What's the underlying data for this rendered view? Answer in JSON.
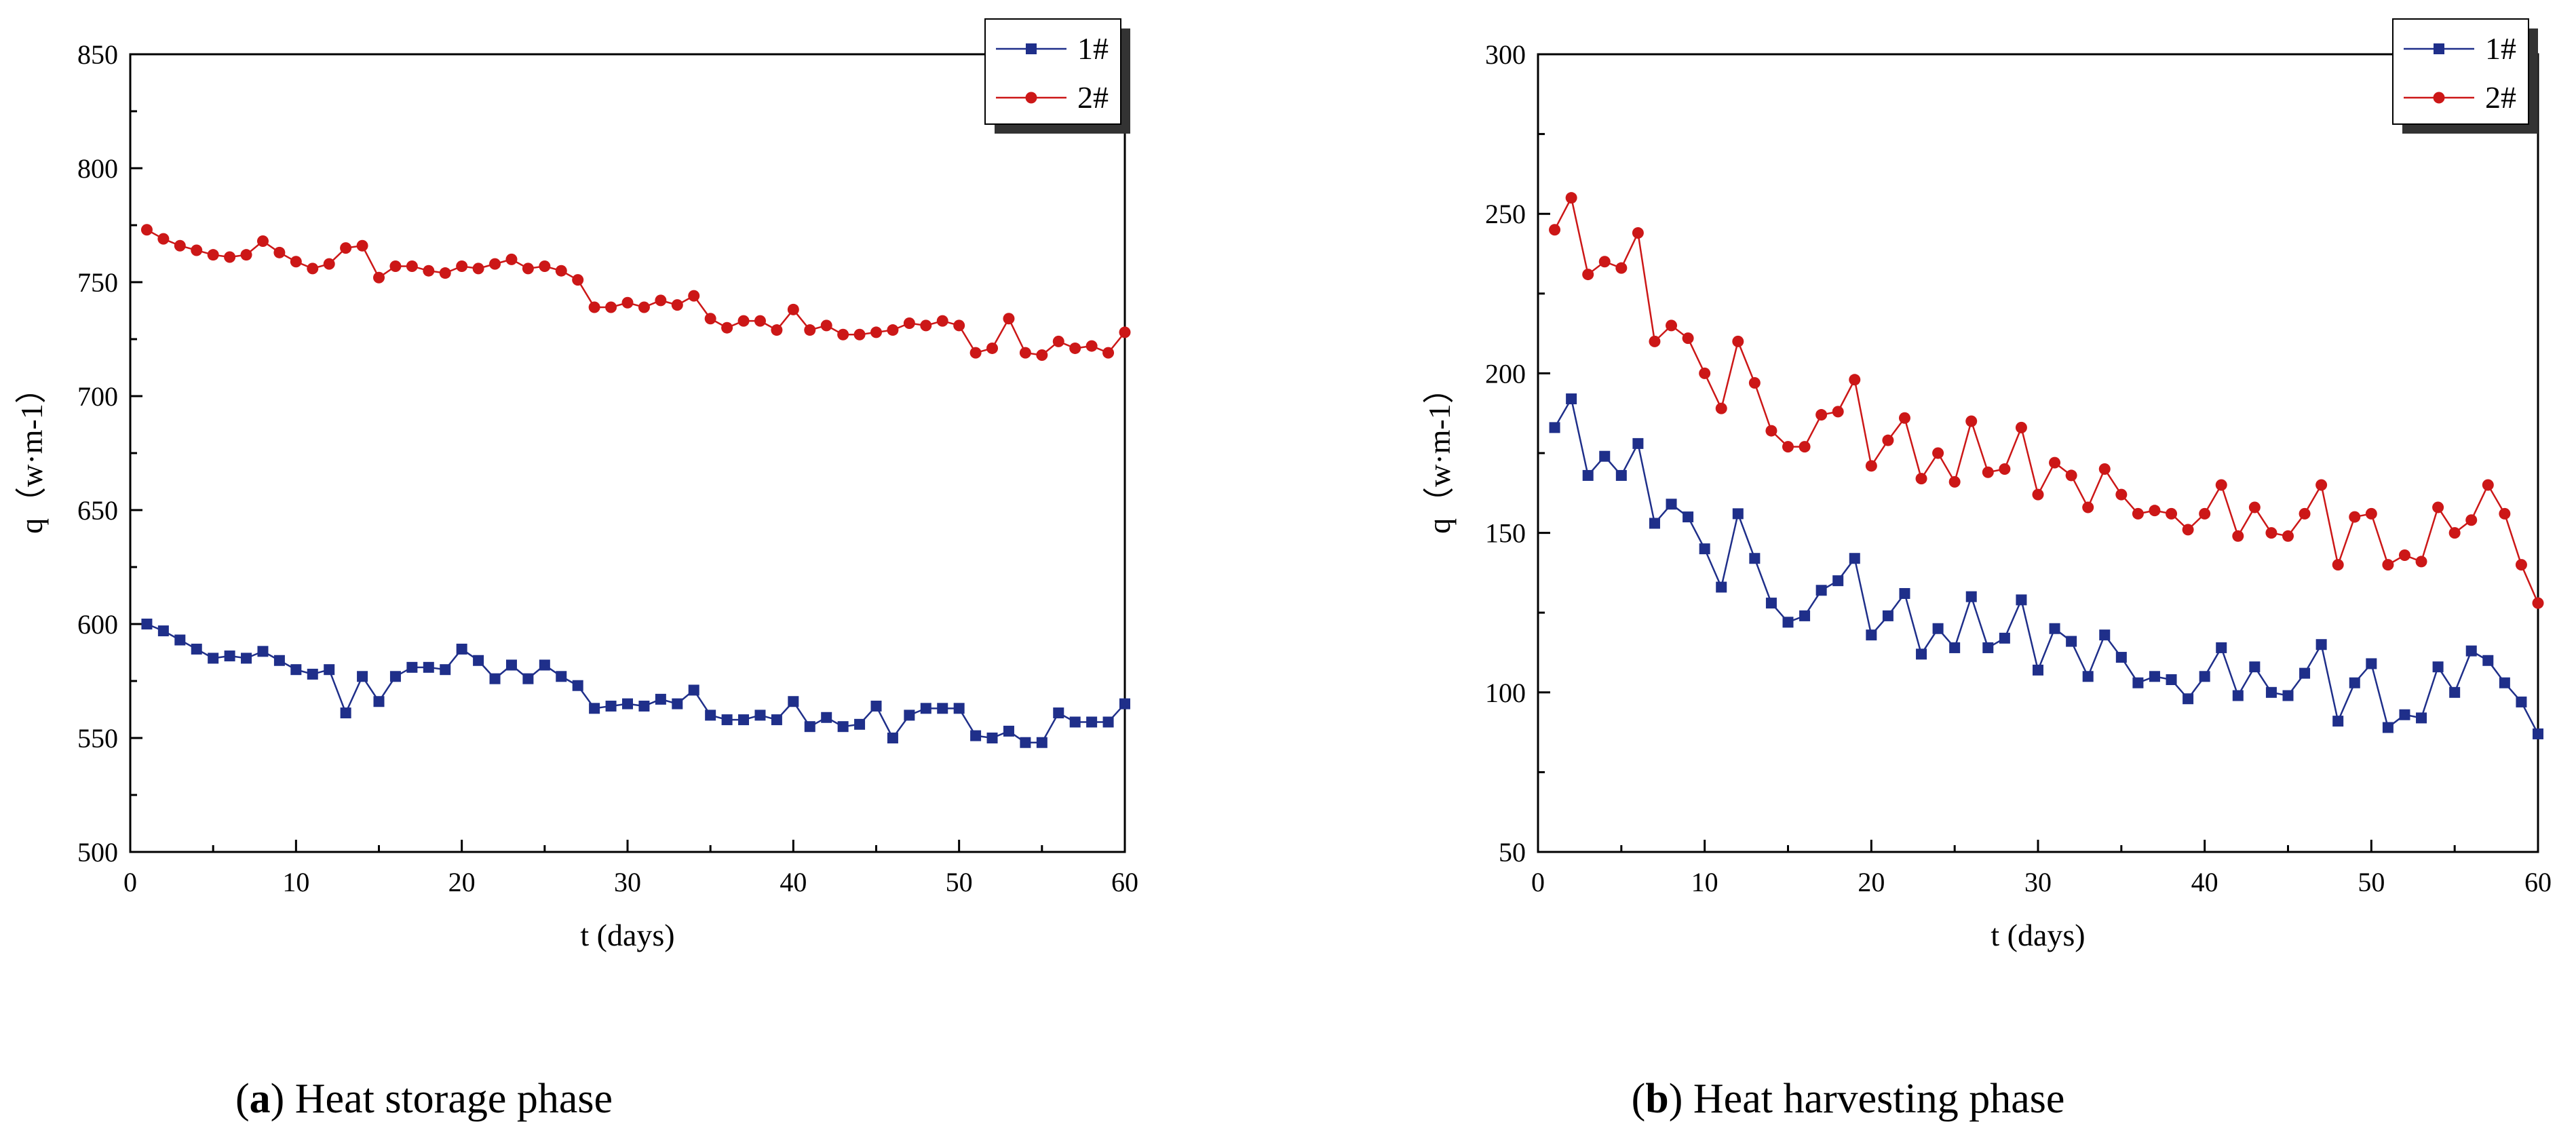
{
  "captions": [
    {
      "letter": "a",
      "text": "Heat storage phase"
    },
    {
      "letter": "b",
      "text": "Heat harvesting phase"
    }
  ],
  "colors": {
    "series_1": "#1f2f8a",
    "series_2": "#cc1717",
    "axis": "#000000",
    "legend_shadow": "#333333"
  },
  "chart_data": [
    {
      "type": "line",
      "xlabel": "t (days)",
      "ylabel": "q（w·m-1）",
      "xlim": [
        0,
        60
      ],
      "ylim": [
        500,
        850
      ],
      "xticks": [
        0,
        10,
        20,
        30,
        40,
        50,
        60
      ],
      "yticks": [
        500,
        550,
        600,
        650,
        700,
        750,
        800,
        850
      ],
      "grid": false,
      "legend_position": "top-right",
      "x": [
        1,
        2,
        3,
        4,
        5,
        6,
        7,
        8,
        9,
        10,
        11,
        12,
        13,
        14,
        15,
        16,
        17,
        18,
        19,
        20,
        21,
        22,
        23,
        24,
        25,
        26,
        27,
        28,
        29,
        30,
        31,
        32,
        33,
        34,
        35,
        36,
        37,
        38,
        39,
        40,
        41,
        42,
        43,
        44,
        45,
        46,
        47,
        48,
        49,
        50,
        51,
        52,
        53,
        54,
        55,
        56,
        57,
        58,
        59,
        60
      ],
      "series": [
        {
          "name": "1#",
          "marker": "square",
          "values": [
            600,
            597,
            593,
            589,
            585,
            586,
            585,
            588,
            584,
            580,
            578,
            580,
            561,
            577,
            566,
            577,
            581,
            581,
            580,
            589,
            584,
            576,
            582,
            576,
            582,
            577,
            573,
            563,
            564,
            565,
            564,
            567,
            565,
            571,
            560,
            558,
            558,
            560,
            558,
            566,
            555,
            559,
            555,
            556,
            564,
            550,
            560,
            563,
            563,
            563,
            551,
            550,
            553,
            548,
            548,
            561,
            557,
            557,
            557,
            565
          ]
        },
        {
          "name": "2#",
          "marker": "circle",
          "values": [
            773,
            769,
            766,
            764,
            762,
            761,
            762,
            768,
            763,
            759,
            756,
            758,
            765,
            766,
            752,
            757,
            757,
            755,
            754,
            757,
            756,
            758,
            760,
            756,
            757,
            755,
            751,
            739,
            739,
            741,
            739,
            742,
            740,
            744,
            734,
            730,
            733,
            733,
            729,
            738,
            729,
            731,
            727,
            727,
            728,
            729,
            732,
            731,
            733,
            731,
            719,
            721,
            734,
            719,
            718,
            724,
            721,
            722,
            719,
            728
          ]
        }
      ]
    },
    {
      "type": "line",
      "xlabel": "t (days)",
      "ylabel": "q（w·m-1）",
      "xlim": [
        0,
        60
      ],
      "ylim": [
        50,
        300
      ],
      "xticks": [
        0,
        10,
        20,
        30,
        40,
        50,
        60
      ],
      "yticks": [
        50,
        100,
        150,
        200,
        250,
        300
      ],
      "grid": false,
      "legend_position": "top-right",
      "x": [
        1,
        2,
        3,
        4,
        5,
        6,
        7,
        8,
        9,
        10,
        11,
        12,
        13,
        14,
        15,
        16,
        17,
        18,
        19,
        20,
        21,
        22,
        23,
        24,
        25,
        26,
        27,
        28,
        29,
        30,
        31,
        32,
        33,
        34,
        35,
        36,
        37,
        38,
        39,
        40,
        41,
        42,
        43,
        44,
        45,
        46,
        47,
        48,
        49,
        50,
        51,
        52,
        53,
        54,
        55,
        56,
        57,
        58,
        59,
        60
      ],
      "series": [
        {
          "name": "1#",
          "marker": "square",
          "values": [
            183,
            192,
            168,
            174,
            168,
            178,
            153,
            159,
            155,
            145,
            133,
            156,
            142,
            128,
            122,
            124,
            132,
            135,
            142,
            118,
            124,
            131,
            112,
            120,
            114,
            130,
            114,
            117,
            129,
            107,
            120,
            116,
            105,
            118,
            111,
            103,
            105,
            104,
            98,
            105,
            114,
            99,
            108,
            100,
            99,
            106,
            115,
            91,
            103,
            109,
            89,
            93,
            92,
            108,
            100,
            113,
            110,
            103,
            97,
            87
          ]
        },
        {
          "name": "2#",
          "marker": "circle",
          "values": [
            245,
            255,
            231,
            235,
            233,
            244,
            210,
            215,
            211,
            200,
            189,
            210,
            197,
            182,
            177,
            177,
            187,
            188,
            198,
            171,
            179,
            186,
            167,
            175,
            166,
            185,
            169,
            170,
            183,
            162,
            172,
            168,
            158,
            170,
            162,
            156,
            157,
            156,
            151,
            156,
            165,
            149,
            158,
            150,
            149,
            156,
            165,
            140,
            155,
            156,
            140,
            143,
            141,
            158,
            150,
            154,
            165,
            156,
            140,
            128
          ]
        }
      ]
    }
  ]
}
